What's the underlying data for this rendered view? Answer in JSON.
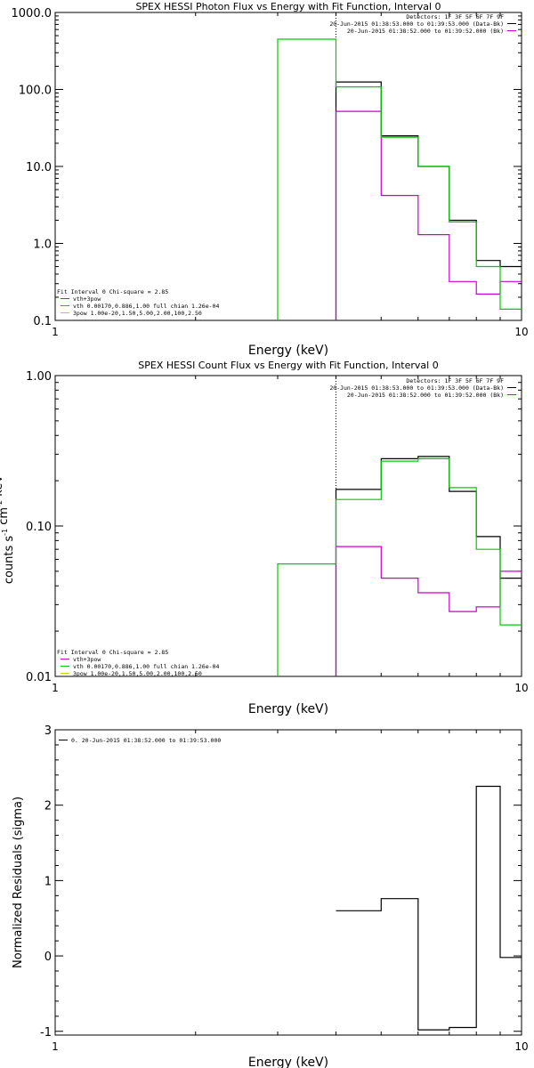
{
  "chart_data": [
    {
      "type": "step",
      "title": "SPEX HESSI Photon Flux vs Energy with Fit Function, Interval 0",
      "xlabel": "Energy (keV)",
      "ylabel": "",
      "xscale": "log",
      "yscale": "log",
      "xlim": [
        1,
        10
      ],
      "ylim": [
        0.1,
        1000
      ],
      "xticks": [
        {
          "v": 1,
          "label": "1"
        },
        {
          "v": 10,
          "label": "10"
        }
      ],
      "yticks": [
        {
          "v": 0.1,
          "label": "0.1"
        },
        {
          "v": 1,
          "label": "1.0"
        },
        {
          "v": 10,
          "label": "10.0"
        },
        {
          "v": 100,
          "label": "100.0"
        },
        {
          "v": 1000,
          "label": "1000.0"
        }
      ],
      "header": [
        "Detectors: 1F 3F 5F 6F 7F 9F",
        "20-Jun-2015 01:38:53.000 to 01:39:53.000 (Data-Bk)",
        "20-Jun-2015 01:38:52.000 to 01:39:52.000 (Bk)"
      ],
      "header_colors": [
        "#000000",
        "#000000",
        "#cc00cc"
      ],
      "legend": [
        "Fit Interval 0   Chi-square = 2.85",
        "vth+3pow",
        "vth 0.00170,0.886,1.00  full chian 1.26e-04",
        "3pow 1.00e-20,1.50,5.00,2.00,100,2.50"
      ],
      "legend_colors": [
        "#000000",
        "#cc00cc",
        "#00cc00",
        "#cccc00"
      ],
      "vline_x": 4.0,
      "series": [
        {
          "name": "Data-Bk",
          "color": "#000000",
          "edges": [
            4.0,
            5.0,
            6.0,
            7.0,
            8.0,
            9.0,
            10.0
          ],
          "values": [
            125,
            25,
            10,
            2.0,
            0.6,
            0.5
          ]
        },
        {
          "name": "Bk",
          "color": "#cc00cc",
          "edges": [
            4.0,
            5.0,
            6.0,
            7.0,
            8.0,
            9.0,
            10.0
          ],
          "values": [
            52,
            4.2,
            1.3,
            0.32,
            0.22,
            0.32
          ]
        },
        {
          "name": "vth 0.00170,0.886,1.00",
          "color": "#00cc00",
          "edges": [
            3.0,
            4.0,
            5.0,
            6.0,
            7.0,
            8.0,
            9.0,
            10.0
          ],
          "values": [
            450,
            108,
            24,
            10,
            1.9,
            0.5,
            0.14
          ]
        }
      ]
    },
    {
      "type": "step",
      "title": "SPEX HESSI Count Flux vs Energy with Fit Function, Interval 0",
      "xlabel": "Energy (keV)",
      "ylabel": "counts s",
      "ylabel_unit_tail": " cm    keV",
      "ylabel_sups": [
        "-1",
        "-2",
        "-1"
      ],
      "xscale": "log",
      "yscale": "log",
      "xlim": [
        1,
        10
      ],
      "ylim": [
        0.01,
        1
      ],
      "xticks": [
        {
          "v": 1,
          "label": "1"
        },
        {
          "v": 10,
          "label": "10"
        }
      ],
      "yticks": [
        {
          "v": 0.01,
          "label": "0.01"
        },
        {
          "v": 0.1,
          "label": "0.10"
        },
        {
          "v": 1,
          "label": "1.00"
        }
      ],
      "header": [
        "Detectors: 1F 3F 5F 6F 7F 9F",
        "20-Jun-2015 01:38:53.000 to 01:39:53.000 (Data-Bk)",
        "20-Jun-2015 01:38:52.000 to 01:39:52.000 (Bk)"
      ],
      "header_colors": [
        "#000000",
        "#000000",
        "#cc00cc"
      ],
      "legend": [
        "Fit Interval 0   Chi-square = 2.85",
        "vth+3pow",
        "vth 0.00170,0.886,1.00  full chian 1.26e-04",
        "3pow 1.00e-20,1.50,5.00,2.00,100,2.50"
      ],
      "legend_colors": [
        "#000000",
        "#cc00cc",
        "#00cc00",
        "#cccc00"
      ],
      "vline_x": 4.0,
      "series": [
        {
          "name": "Data-Bk",
          "color": "#000000",
          "edges": [
            4.0,
            5.0,
            6.0,
            7.0,
            8.0,
            9.0,
            10.0
          ],
          "values": [
            0.175,
            0.28,
            0.29,
            0.17,
            0.085,
            0.045
          ]
        },
        {
          "name": "Bk",
          "color": "#cc00cc",
          "edges": [
            4.0,
            5.0,
            6.0,
            7.0,
            8.0,
            9.0,
            10.0
          ],
          "values": [
            0.073,
            0.045,
            0.036,
            0.027,
            0.029,
            0.05
          ]
        },
        {
          "name": "vth 0.00170,0.886,1.00",
          "color": "#00cc00",
          "edges": [
            3.0,
            4.0,
            5.0,
            6.0,
            7.0,
            8.0,
            9.0,
            10.0
          ],
          "values": [
            0.056,
            0.15,
            0.27,
            0.28,
            0.18,
            0.07,
            0.022
          ]
        }
      ]
    },
    {
      "type": "step",
      "title": "",
      "xlabel": "Energy (keV)",
      "ylabel": "Normalized Residuals (sigma)",
      "xscale": "log",
      "yscale": "linear",
      "xlim": [
        1,
        10
      ],
      "ylim": [
        -1.05,
        3
      ],
      "xticks": [
        {
          "v": 1,
          "label": "1"
        },
        {
          "v": 10,
          "label": "10"
        }
      ],
      "yticks": [
        {
          "v": -1,
          "label": "-1"
        },
        {
          "v": 0,
          "label": "0"
        },
        {
          "v": 1,
          "label": "1"
        },
        {
          "v": 2,
          "label": "2"
        },
        {
          "v": 3,
          "label": "3"
        }
      ],
      "legend": [
        "0. 20-Jun-2015 01:38:52.000 to 01:39:53.000"
      ],
      "legend_colors": [
        "#000000"
      ],
      "series": [
        {
          "name": "0. 20-Jun-2015 01:38:52.000 to 01:39:53.000",
          "color": "#000000",
          "edges": [
            4.0,
            5.0,
            6.0,
            7.0,
            8.0,
            9.0,
            10.0
          ],
          "values": [
            0.6,
            0.76,
            -0.98,
            -0.95,
            2.25,
            -0.02
          ]
        }
      ]
    }
  ]
}
